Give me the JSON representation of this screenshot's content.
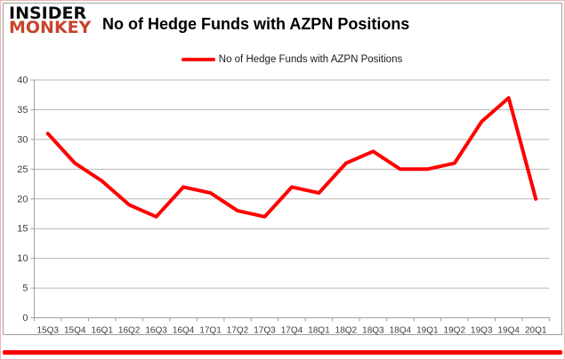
{
  "logo": {
    "line1": "INSIDER",
    "line2": "MONKEY"
  },
  "title": "No of Hedge Funds with AZPN Positions",
  "legend": {
    "label": "No of Hedge Funds with AZPN Positions",
    "swatch_color": "#ff0000"
  },
  "chart_data": {
    "type": "line",
    "title": "No of Hedge Funds with AZPN Positions",
    "series_name": "No of Hedge Funds with AZPN Positions",
    "categories": [
      "15Q3",
      "15Q4",
      "16Q1",
      "16Q2",
      "16Q3",
      "16Q4",
      "17Q1",
      "17Q2",
      "17Q3",
      "17Q4",
      "18Q1",
      "18Q2",
      "18Q3",
      "18Q4",
      "19Q1",
      "19Q2",
      "19Q3",
      "19Q4",
      "20Q1"
    ],
    "values": [
      31,
      26,
      23,
      19,
      17,
      22,
      21,
      18,
      17,
      22,
      21,
      26,
      28,
      25,
      25,
      26,
      33,
      37,
      20
    ],
    "ylim": [
      0,
      40
    ],
    "ytick_step": 5,
    "ytick_labels": [
      "0",
      "5",
      "10",
      "15",
      "20",
      "25",
      "30",
      "35",
      "40"
    ],
    "grid": true,
    "legend_position": "top",
    "colors": {
      "line": "#ff0000",
      "gridline": "#b7b7b7",
      "axis": "#9f9f9f",
      "tick_label": "#3f3f3f"
    }
  }
}
